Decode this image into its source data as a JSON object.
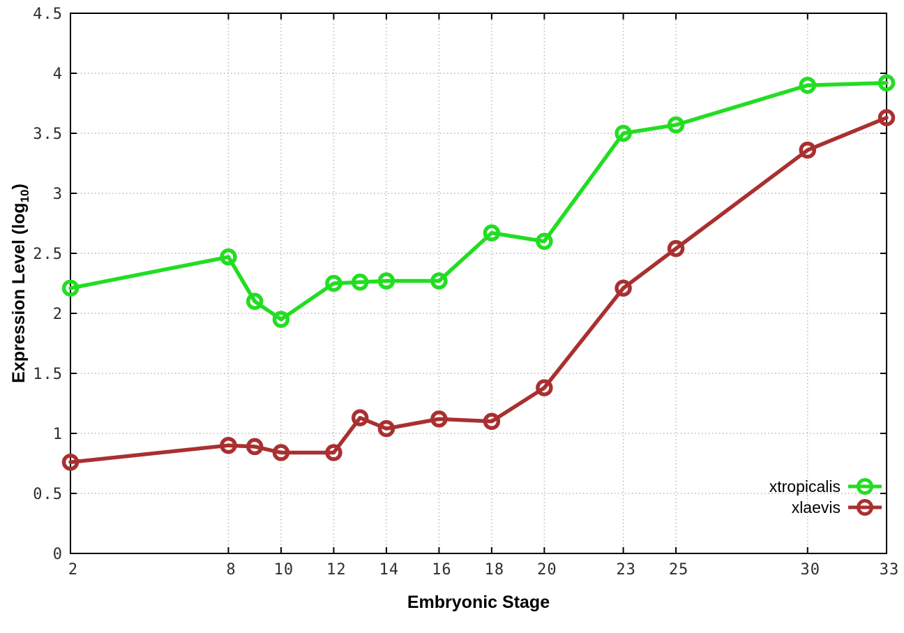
{
  "figure": {
    "background": "#ffffff",
    "axis_color": "#000000",
    "grid_color": "#b5b5b5",
    "tick_text_color": "#2e2e2e"
  },
  "chart_data": {
    "type": "line",
    "title": "",
    "xlabel": "Embryonic Stage",
    "ylabel": "Expression Level (log10)",
    "ylabel_parts": {
      "prefix": "Expression Level (log",
      "sub": "10",
      "suffix": ")"
    },
    "x": [
      2,
      8,
      9,
      10,
      12,
      13,
      14,
      16,
      18,
      20,
      23,
      25,
      30,
      33
    ],
    "xlim": [
      2,
      33
    ],
    "ylim": [
      0,
      4.5
    ],
    "xticks": [
      2,
      8,
      10,
      12,
      14,
      16,
      18,
      20,
      23,
      25,
      30,
      33
    ],
    "xtick_labels": [
      "2",
      "8",
      "10",
      "12",
      "14",
      "16",
      "18",
      "20",
      "23",
      "25",
      "30",
      "33"
    ],
    "yticks": [
      0,
      0.5,
      1,
      1.5,
      2,
      2.5,
      3,
      3.5,
      4,
      4.5
    ],
    "ytick_labels": [
      "0",
      "0.5",
      "1",
      "1.5",
      "2",
      "2.5",
      "3",
      "3.5",
      "4",
      "4.5"
    ],
    "grid": true,
    "legend_position": "bottom-right",
    "marker": "open-circle",
    "series": [
      {
        "name": "xtropicalis",
        "color": "#22dd22",
        "values": [
          2.21,
          2.47,
          2.1,
          1.95,
          2.25,
          2.26,
          2.27,
          2.27,
          2.67,
          2.6,
          3.5,
          3.57,
          3.9,
          3.92
        ]
      },
      {
        "name": "xlaevis",
        "color": "#a93030",
        "values": [
          0.76,
          0.9,
          0.89,
          0.84,
          0.84,
          1.13,
          1.04,
          1.12,
          1.1,
          1.38,
          2.21,
          2.54,
          3.36,
          3.63
        ]
      }
    ]
  }
}
